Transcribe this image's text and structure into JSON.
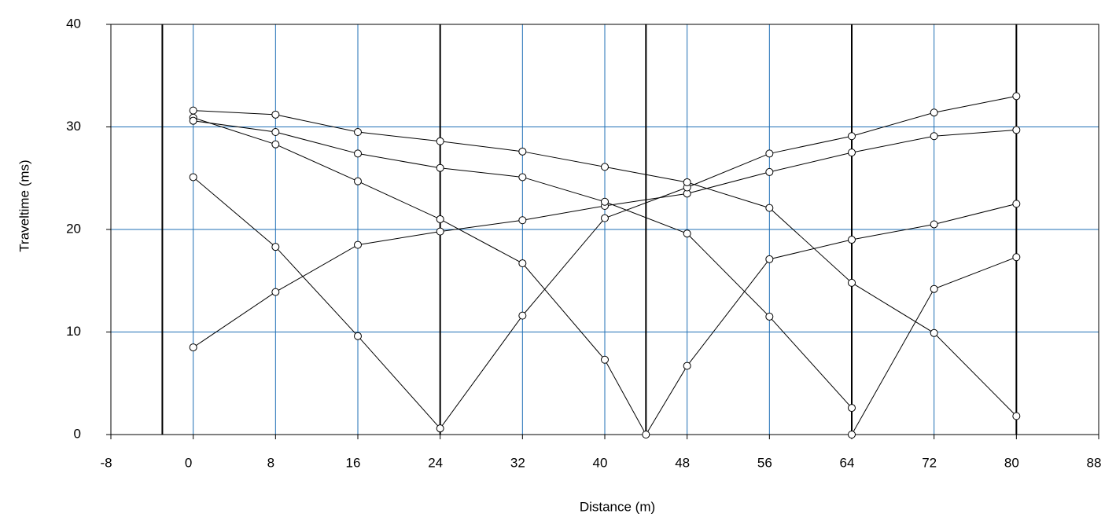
{
  "chart_data": {
    "type": "line",
    "xlabel": "Distance (m)",
    "ylabel": "Traveltime (ms)",
    "xlim": [
      -8,
      88
    ],
    "xticks": [
      -8,
      0,
      8,
      16,
      24,
      32,
      40,
      48,
      56,
      64,
      72,
      80,
      88
    ],
    "ylim": [
      0,
      40
    ],
    "yticks": [
      0,
      10,
      20,
      30,
      40
    ],
    "grid": true,
    "grid_color": "#1f6fb5",
    "shots": [
      -3,
      24,
      44,
      64,
      80
    ],
    "series": [
      {
        "color": "#000000",
        "x": [
          0,
          8,
          16,
          24,
          32,
          40,
          48,
          56,
          64,
          72,
          80
        ],
        "values": [
          8.5,
          13.9,
          18.5,
          19.8,
          20.9,
          22.3,
          23.5,
          25.6,
          27.5,
          29.1,
          29.7
        ]
      },
      {
        "color": "#000000",
        "x": [
          0,
          8,
          16,
          24,
          32,
          40,
          48,
          56,
          64,
          72,
          80
        ],
        "values": [
          25.1,
          18.3,
          9.6,
          0.6,
          11.6,
          21.1,
          24.1,
          27.4,
          29.1,
          31.4,
          33.0
        ]
      },
      {
        "color": "#000000",
        "x": [
          0,
          8,
          16,
          24,
          32,
          40,
          44,
          48,
          56,
          64,
          72,
          80
        ],
        "values": [
          30.9,
          28.3,
          24.7,
          21.0,
          16.7,
          7.3,
          0,
          6.7,
          17.1,
          19.0,
          20.5,
          22.5
        ]
      },
      {
        "color": "#000000",
        "x": [
          0,
          8,
          16,
          24,
          32,
          40,
          48,
          56,
          64,
          64,
          72,
          80
        ],
        "values": [
          30.6,
          29.5,
          27.4,
          26.0,
          25.1,
          22.7,
          19.6,
          11.5,
          2.6,
          0,
          14.2,
          17.3
        ]
      },
      {
        "color": "#000000",
        "x": [
          0,
          8,
          16,
          24,
          32,
          40,
          48,
          56,
          64,
          72,
          80
        ],
        "values": [
          31.6,
          31.2,
          29.5,
          28.6,
          27.6,
          26.1,
          24.6,
          22.1,
          14.8,
          9.9,
          1.8
        ]
      }
    ]
  }
}
